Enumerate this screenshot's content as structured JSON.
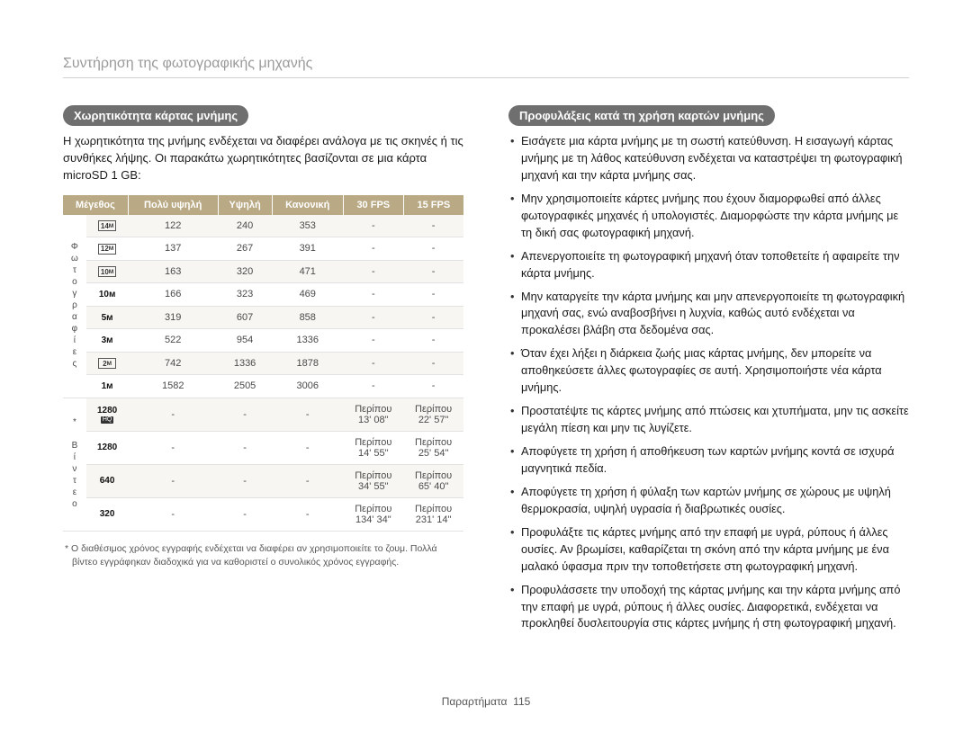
{
  "page": {
    "title": "Συντήρηση της φωτογραφικής μηχανής",
    "footer_prefix": "Παραρτήματα",
    "footer_num": "115"
  },
  "left": {
    "pill": "Χωρητικότητα κάρτας μνήμης",
    "intro": "Η χωρητικότητα της μνήμης ενδέχεται να διαφέρει ανάλογα με τις σκηνές ή τις συνθήκες λήψης. Οι παρακάτω χωρητικότητες βασίζονται σε μια κάρτα microSD 1 GB:",
    "headers": [
      "Μέγεθος",
      "Πολύ υψηλή",
      "Υψηλή",
      "Κανονική",
      "30 FPS",
      "15 FPS"
    ],
    "side_photo": "Φωτογραφίες",
    "side_video": "* Βίντεο",
    "photo_rows": [
      {
        "size": "14m",
        "v": [
          "122",
          "240",
          "353",
          "-",
          "-"
        ]
      },
      {
        "size": "12m",
        "v": [
          "137",
          "267",
          "391",
          "-",
          "-"
        ]
      },
      {
        "size": "10mW",
        "v": [
          "163",
          "320",
          "471",
          "-",
          "-"
        ]
      },
      {
        "size": "10m",
        "v": [
          "166",
          "323",
          "469",
          "-",
          "-"
        ]
      },
      {
        "size": "5m",
        "v": [
          "319",
          "607",
          "858",
          "-",
          "-"
        ]
      },
      {
        "size": "3m",
        "v": [
          "522",
          "954",
          "1336",
          "-",
          "-"
        ]
      },
      {
        "size": "2mW",
        "v": [
          "742",
          "1336",
          "1878",
          "-",
          "-"
        ]
      },
      {
        "size": "1m",
        "v": [
          "1582",
          "2505",
          "3006",
          "-",
          "-"
        ]
      }
    ],
    "video_rows": [
      {
        "size": "1280HQ",
        "v": [
          "-",
          "-",
          "-",
          "Περίπου 13' 08\"",
          "Περίπου 22' 57\""
        ]
      },
      {
        "size": "1280",
        "v": [
          "-",
          "-",
          "-",
          "Περίπου 14' 55\"",
          "Περίπου 25' 54\""
        ]
      },
      {
        "size": "640",
        "v": [
          "-",
          "-",
          "-",
          "Περίπου 34' 55\"",
          "Περίπου 65' 40\""
        ]
      },
      {
        "size": "320",
        "v": [
          "-",
          "-",
          "-",
          "Περίπου 134' 34\"",
          "Περίπου 231' 14\""
        ]
      }
    ],
    "footnote": "* Ο διαθέσιμος χρόνος εγγραφής ενδέχεται να διαφέρει αν χρησιμοποιείτε το ζουμ. Πολλά βίντεο εγγράφηκαν διαδοχικά για να καθοριστεί ο συνολικός χρόνος εγγραφής."
  },
  "right": {
    "pill": "Προφυλάξεις κατά τη χρήση καρτών μνήμης",
    "bullets": [
      "Εισάγετε μια κάρτα μνήμης με τη σωστή κατεύθυνση. Η εισαγωγή κάρτας μνήμης με τη λάθος κατεύθυνση ενδέχεται να καταστρέψει τη φωτογραφική μηχανή και την κάρτα μνήμης σας.",
      "Μην χρησιμοποιείτε κάρτες μνήμης που έχουν διαμορφωθεί από άλλες φωτογραφικές μηχανές ή υπολογιστές. Διαμορφώστε την κάρτα μνήμης με τη δική σας φωτογραφική μηχανή.",
      "Απενεργοποιείτε τη φωτογραφική μηχανή όταν τοποθετείτε ή αφαιρείτε την κάρτα μνήμης.",
      "Μην καταργείτε την κάρτα μνήμης και μην απενεργοποιείτε τη φωτογραφική μηχανή σας, ενώ αναβοσβήνει η λυχνία, καθώς αυτό ενδέχεται να προκαλέσει βλάβη στα δεδομένα σας.",
      "Όταν έχει λήξει η διάρκεια ζωής μιας κάρτας μνήμης, δεν μπορείτε να αποθηκεύσετε άλλες φωτογραφίες σε αυτή. Χρησιμοποιήστε νέα κάρτα μνήμης.",
      "Προστατέψτε τις κάρτες μνήμης από πτώσεις και χτυπήματα, μην τις ασκείτε μεγάλη πίεση και μην τις λυγίζετε.",
      "Αποφύγετε τη χρήση ή αποθήκευση των καρτών μνήμης κοντά σε ισχυρά μαγνητικά πεδία.",
      "Αποφύγετε τη χρήση ή φύλαξη των καρτών μνήμης σε χώρους με υψηλή θερμοκρασία, υψηλή υγρασία ή διαβρωτικές ουσίες.",
      "Προφυλάξτε τις κάρτες μνήμης από την επαφή με υγρά, ρύπους ή άλλες ουσίες. Αν βρωμίσει, καθαρίζεται τη σκόνη από την κάρτα μνήμης με ένα μαλακό ύφασμα πριν την τοποθετήσετε στη φωτογραφική μηχανή.",
      "Προφυλάσσετε την υποδοχή της κάρτας μνήμης και την κάρτα μνήμης από την επαφή με υγρά, ρύπους ή άλλες ουσίες. Διαφορετικά, ενδέχεται να προκληθεί δυσλειτουργία στις κάρτες μνήμης ή στη φωτογραφική μηχανή."
    ]
  },
  "styling": {
    "header_bg": "#b9a984",
    "header_fg": "#ffffff",
    "pill_bg": "#6f6f6f",
    "title_color": "#9a9a9a",
    "row_alt_bg": "#f8f6f2",
    "border_color": "#e2e2e2"
  }
}
